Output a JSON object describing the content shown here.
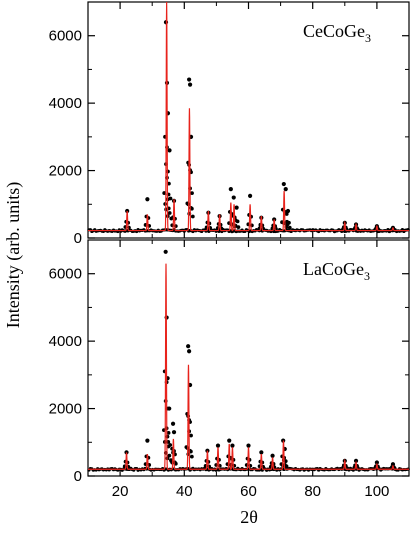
{
  "chart_data": {
    "type": "line",
    "xlabel": "2θ",
    "ylabel": "Intensity (arb. units)",
    "xlim": [
      10,
      110
    ],
    "ylim": [
      0,
      7000
    ],
    "xticks": [
      20,
      40,
      60,
      80,
      100
    ],
    "yticks": [
      0,
      2000,
      4000,
      6000
    ],
    "panels": [
      {
        "label_main": "CeCoGe",
        "label_sub": "3",
        "background": 220,
        "observed_peaks": [
          [
            22.2,
            800
          ],
          [
            28.5,
            1150
          ],
          [
            34.3,
            6400
          ],
          [
            34.6,
            4600
          ],
          [
            34.9,
            3700
          ],
          [
            35.4,
            2600
          ],
          [
            36.8,
            1100
          ],
          [
            41.5,
            4700
          ],
          [
            41.8,
            4550
          ],
          [
            42.1,
            3000
          ],
          [
            47.5,
            750
          ],
          [
            51.0,
            650
          ],
          [
            54.5,
            1450
          ],
          [
            55.4,
            1200
          ],
          [
            56.3,
            900
          ],
          [
            60.5,
            1250
          ],
          [
            64.0,
            600
          ],
          [
            68.0,
            550
          ],
          [
            71.0,
            1600
          ],
          [
            71.6,
            1450
          ],
          [
            72.3,
            800
          ],
          [
            90.0,
            450
          ],
          [
            93.5,
            400
          ],
          [
            100.0,
            350
          ],
          [
            105.0,
            300
          ]
        ],
        "calculated_peaks": [
          [
            22.2,
            800
          ],
          [
            28.5,
            700
          ],
          [
            34.5,
            7000
          ],
          [
            36.8,
            1150
          ],
          [
            41.6,
            3850
          ],
          [
            47.5,
            800
          ],
          [
            51.0,
            700
          ],
          [
            54.5,
            1050
          ],
          [
            55.5,
            1000
          ],
          [
            60.5,
            1000
          ],
          [
            64.0,
            650
          ],
          [
            68.0,
            550
          ],
          [
            71.1,
            1400
          ],
          [
            90.0,
            450
          ],
          [
            93.5,
            400
          ],
          [
            100.0,
            350
          ],
          [
            105.0,
            300
          ]
        ]
      },
      {
        "label_main": "LaCoGe",
        "label_sub": "3",
        "background": 200,
        "observed_peaks": [
          [
            22.0,
            700
          ],
          [
            28.5,
            1050
          ],
          [
            34.2,
            6650
          ],
          [
            34.5,
            4700
          ],
          [
            34.8,
            2900
          ],
          [
            35.3,
            2000
          ],
          [
            36.5,
            1550
          ],
          [
            36.8,
            1300
          ],
          [
            41.2,
            3850
          ],
          [
            41.5,
            3700
          ],
          [
            41.8,
            2700
          ],
          [
            47.2,
            750
          ],
          [
            50.5,
            900
          ],
          [
            54.0,
            1050
          ],
          [
            55.0,
            900
          ],
          [
            60.0,
            900
          ],
          [
            64.0,
            700
          ],
          [
            67.5,
            600
          ],
          [
            70.8,
            1050
          ],
          [
            71.3,
            800
          ],
          [
            90.0,
            450
          ],
          [
            93.5,
            450
          ],
          [
            100.0,
            400
          ],
          [
            105.0,
            350
          ]
        ],
        "calculated_peaks": [
          [
            22.0,
            700
          ],
          [
            28.5,
            650
          ],
          [
            34.3,
            6300
          ],
          [
            36.6,
            1100
          ],
          [
            41.3,
            3300
          ],
          [
            47.2,
            750
          ],
          [
            50.5,
            850
          ],
          [
            54.0,
            950
          ],
          [
            55.0,
            850
          ],
          [
            60.0,
            850
          ],
          [
            64.0,
            650
          ],
          [
            67.5,
            550
          ],
          [
            70.9,
            1050
          ],
          [
            90.0,
            450
          ],
          [
            93.5,
            400
          ],
          [
            100.0,
            350
          ],
          [
            105.0,
            300
          ]
        ]
      }
    ]
  }
}
